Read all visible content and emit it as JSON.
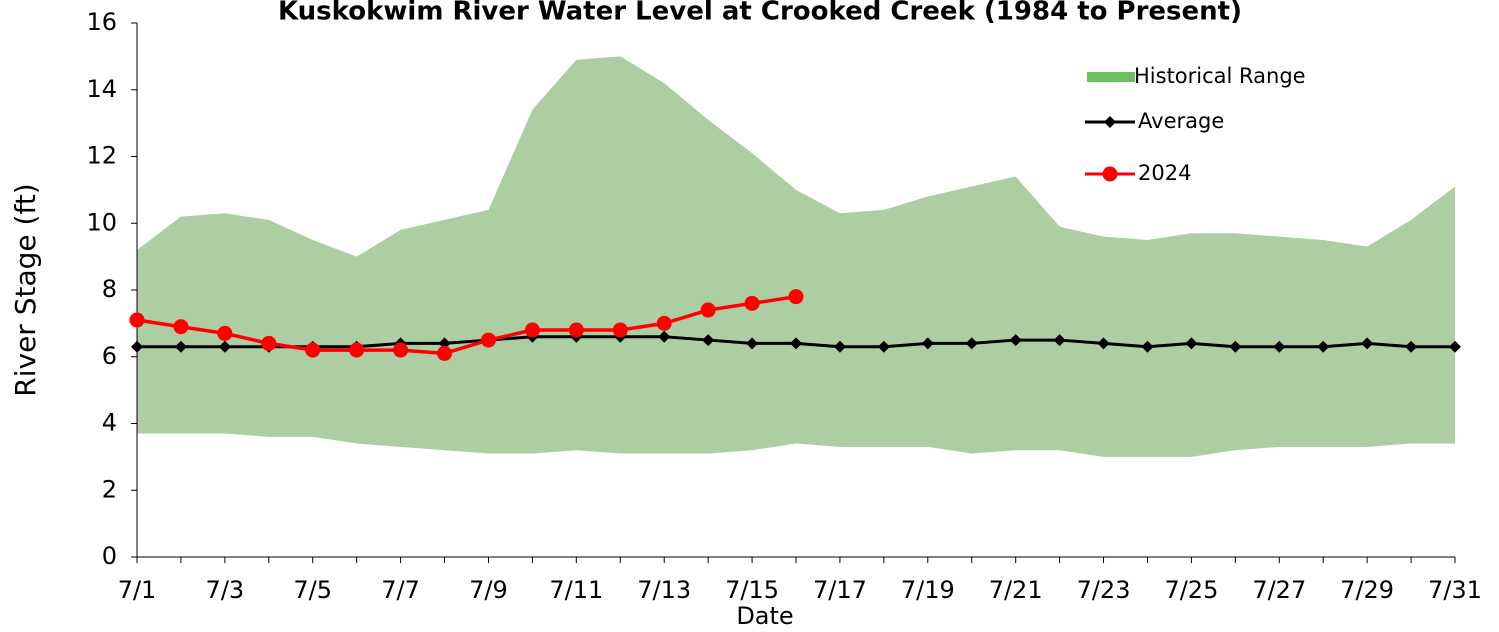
{
  "chart_data": {
    "type": "range-line",
    "title": "Kuskokwim River Water Level at Crooked Creek (1984 to Present)",
    "x_label": "Date",
    "y_label": "River Stage (ft)",
    "categories": [
      "7/1",
      null,
      "7/3",
      null,
      "7/5",
      null,
      "7/7",
      null,
      "7/9",
      null,
      "7/11",
      null,
      "7/13",
      null,
      "7/15",
      null,
      "7/17",
      null,
      "7/19",
      null,
      "7/21",
      null,
      "7/23",
      null,
      "7/25",
      null,
      "7/27",
      null,
      "7/29",
      null,
      "7/31"
    ],
    "ylim": [
      0,
      16
    ],
    "yticks": [
      0,
      2,
      4,
      6,
      8,
      10,
      12,
      14,
      16
    ],
    "legend_position": "upper right",
    "range": {
      "name": "Historical Range",
      "color": "#adcda2",
      "legend_color": "#6cbf5f",
      "high": [
        9.2,
        10.2,
        10.3,
        10.1,
        9.5,
        9.0,
        9.8,
        10.1,
        10.4,
        13.4,
        14.9,
        15.0,
        14.2,
        13.1,
        12.1,
        11.0,
        10.3,
        10.4,
        10.8,
        11.1,
        11.4,
        9.9,
        9.6,
        9.5,
        9.7,
        9.7,
        9.6,
        9.5,
        9.3,
        10.1,
        11.1
      ],
      "low": [
        3.7,
        3.7,
        3.7,
        3.6,
        3.6,
        3.4,
        3.3,
        3.2,
        3.1,
        3.1,
        3.2,
        3.1,
        3.1,
        3.1,
        3.2,
        3.4,
        3.3,
        3.3,
        3.3,
        3.1,
        3.2,
        3.2,
        3.0,
        3.0,
        3.0,
        3.2,
        3.3,
        3.3,
        3.3,
        3.4,
        3.4
      ]
    },
    "series": [
      {
        "name": "Average",
        "color": "#000000",
        "marker": "diamond",
        "values": [
          6.3,
          6.3,
          6.3,
          6.3,
          6.3,
          6.3,
          6.4,
          6.4,
          6.5,
          6.6,
          6.6,
          6.6,
          6.6,
          6.5,
          6.4,
          6.4,
          6.3,
          6.3,
          6.4,
          6.4,
          6.5,
          6.5,
          6.4,
          6.3,
          6.4,
          6.3,
          6.3,
          6.3,
          6.4,
          6.3,
          6.3
        ]
      },
      {
        "name": "2024",
        "color": "#ff0000",
        "marker": "circle",
        "values": [
          7.1,
          6.9,
          6.7,
          6.4,
          6.2,
          6.2,
          6.2,
          6.1,
          6.5,
          6.8,
          6.8,
          6.8,
          7.0,
          7.4,
          7.6,
          7.8,
          null,
          null,
          null,
          null,
          null,
          null,
          null,
          null,
          null,
          null,
          null,
          null,
          null,
          null,
          null
        ]
      }
    ]
  }
}
